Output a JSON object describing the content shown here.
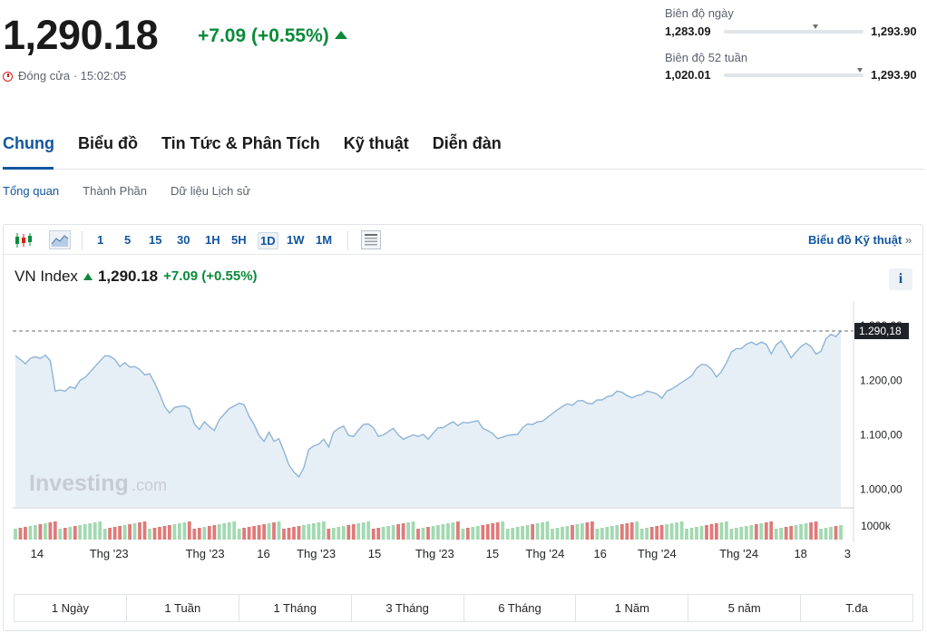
{
  "quote": {
    "price": "1,290.18",
    "change": "+7.09",
    "change_pct": "(+0.55%)",
    "status": "Đóng cửa · 15:02:05"
  },
  "ranges": {
    "day": {
      "label": "Biên độ ngày",
      "low": "1,283.09",
      "high": "1,293.90"
    },
    "week52": {
      "label": "Biên độ 52 tuần",
      "low": "1,020.01",
      "high": "1,293.90"
    }
  },
  "tabs": [
    "Chung",
    "Biểu đồ",
    "Tin Tức & Phân Tích",
    "Kỹ thuật",
    "Diễn đàn"
  ],
  "subtabs": [
    "Tổng quan",
    "Thành Phần",
    "Dữ liệu Lịch sử"
  ],
  "toolbar": {
    "timeframes": [
      "1",
      "5",
      "15",
      "30",
      "1H",
      "5H",
      "1D",
      "1W",
      "1M"
    ],
    "active_timeframe": "1D",
    "tech_link": "Biểu đồ Kỹ thuật",
    "tech_link_arrow": "»",
    "info": "i"
  },
  "symbol": {
    "name": "VN Index",
    "price": "1,290.18",
    "change": "+7.09",
    "change_pct": "(+0.55%)"
  },
  "watermark": {
    "brand": "Investing",
    "suffix": ".com"
  },
  "colors": {
    "up": "#0a8a3a",
    "accent": "#1256a0",
    "line": "#8fb3d6",
    "area": "#e3ecf5",
    "vol_up": "#a3d9b1",
    "vol_down": "#e07a7a"
  },
  "periods": [
    "1 Ngày",
    "1 Tuần",
    "1 Tháng",
    "3 Tháng",
    "6 Tháng",
    "1 Năm",
    "5 năm",
    "T.đa"
  ],
  "chart_data": {
    "type": "area",
    "y_ticks": [
      "1.300,00",
      "1.200,00",
      "1.100,00",
      "1.000,00"
    ],
    "y_tick_values": [
      1300,
      1200,
      1100,
      1000
    ],
    "y_range": [
      968,
      1340
    ],
    "last_label": "1.290,18",
    "last_value": 1290.18,
    "volume_label": "1000k",
    "x_labels": [
      "14",
      "Thg '23",
      "Thg '23",
      "16",
      "Thg '23",
      "15",
      "Thg '23",
      "15",
      "Thg '24",
      "16",
      "Thg '24",
      "Thg '24",
      "18",
      "3"
    ],
    "x_label_positions": [
      0.026,
      0.112,
      0.227,
      0.297,
      0.36,
      0.43,
      0.502,
      0.571,
      0.634,
      0.7,
      0.768,
      0.866,
      0.94,
      1.0
    ],
    "values": [
      1245,
      1238,
      1230,
      1240,
      1243,
      1240,
      1246,
      1236,
      1180,
      1182,
      1180,
      1188,
      1185,
      1200,
      1205,
      1215,
      1225,
      1235,
      1245,
      1244,
      1238,
      1225,
      1232,
      1224,
      1225,
      1220,
      1210,
      1212,
      1195,
      1175,
      1152,
      1140,
      1150,
      1152,
      1153,
      1148,
      1120,
      1110,
      1124,
      1115,
      1108,
      1128,
      1138,
      1148,
      1153,
      1158,
      1155,
      1134,
      1119,
      1099,
      1088,
      1105,
      1088,
      1093,
      1070,
      1045,
      1032,
      1023,
      1040,
      1073,
      1080,
      1083,
      1092,
      1078,
      1105,
      1112,
      1116,
      1099,
      1097,
      1109,
      1119,
      1120,
      1113,
      1097,
      1100,
      1106,
      1112,
      1100,
      1092,
      1096,
      1100,
      1097,
      1101,
      1092,
      1103,
      1113,
      1113,
      1119,
      1124,
      1117,
      1123,
      1122,
      1124,
      1126,
      1112,
      1108,
      1102,
      1093,
      1096,
      1099,
      1100,
      1101,
      1113,
      1120,
      1119,
      1124,
      1125,
      1132,
      1139,
      1146,
      1152,
      1157,
      1154,
      1162,
      1163,
      1158,
      1157,
      1164,
      1164,
      1170,
      1172,
      1180,
      1178,
      1172,
      1168,
      1172,
      1174,
      1180,
      1178,
      1175,
      1167,
      1180,
      1184,
      1190,
      1196,
      1202,
      1208,
      1222,
      1229,
      1228,
      1220,
      1206,
      1216,
      1232,
      1252,
      1258,
      1258,
      1266,
      1270,
      1265,
      1270,
      1266,
      1248,
      1265,
      1272,
      1258,
      1241,
      1252,
      1262,
      1268,
      1262,
      1248,
      1253,
      1276,
      1284,
      1280,
      1290
    ]
  }
}
